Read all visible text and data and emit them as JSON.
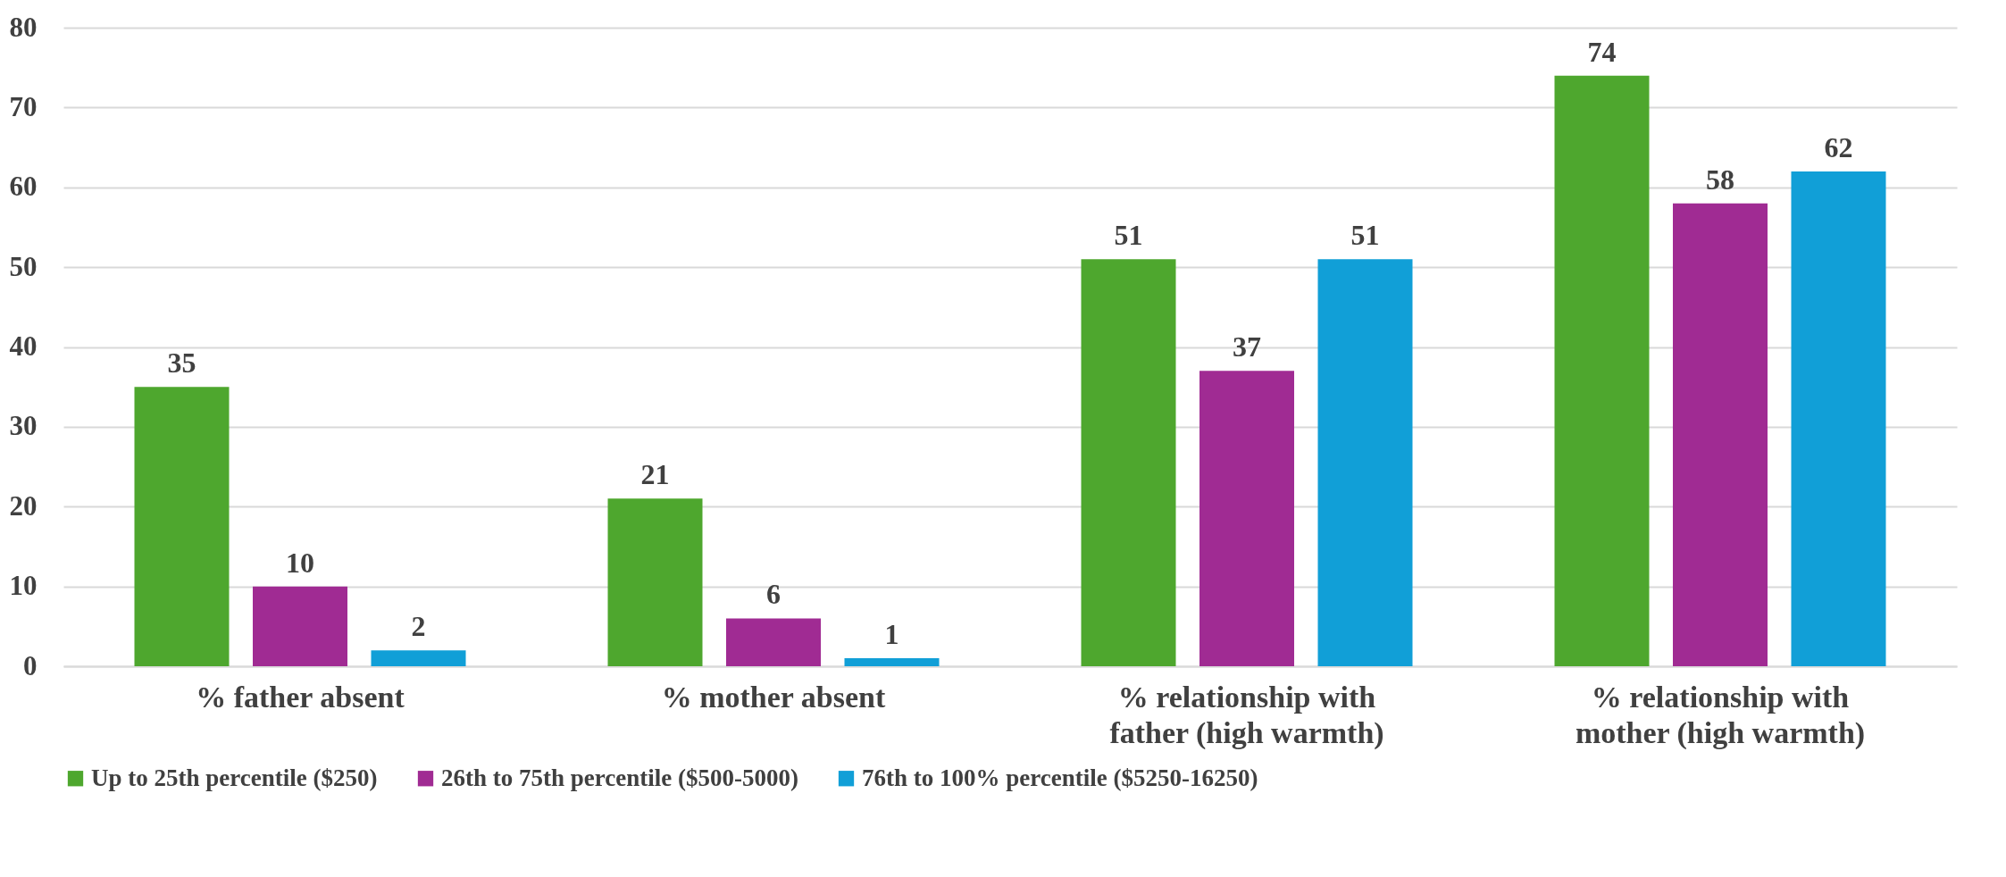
{
  "chart_data": {
    "type": "bar",
    "categories": [
      "% father absent",
      "% mother absent",
      "% relationship with father (high warmth)",
      "% relationship with mother (high warmth)"
    ],
    "series": [
      {
        "name": "Up to 25th percentile ($250)",
        "color": "#4ea72e",
        "values": [
          35,
          21,
          51,
          74
        ]
      },
      {
        "name": "26th to 75th percentile ($500-5000)",
        "color": "#a02b93",
        "values": [
          10,
          6,
          37,
          58
        ]
      },
      {
        "name": "76th to 100% percentile ($5250-16250)",
        "color": "#119fd7",
        "values": [
          2,
          1,
          51,
          62
        ]
      }
    ],
    "ylim": [
      0,
      80
    ],
    "yticks": [
      0,
      10,
      20,
      30,
      40,
      50,
      60,
      70,
      80
    ],
    "grid": "y",
    "legend": "bottom",
    "data_labels": true
  }
}
